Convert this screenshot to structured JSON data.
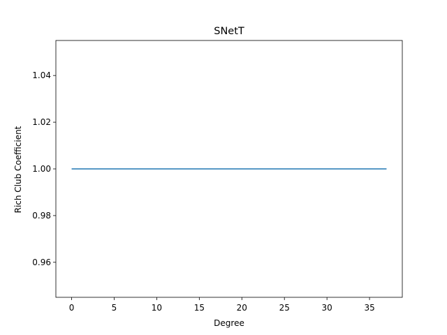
{
  "chart_data": {
    "type": "line",
    "title": "SNetT",
    "xlabel": "Degree",
    "ylabel": "Rich Club Coefficient",
    "xlim": [
      -1.85,
      38.85
    ],
    "ylim": [
      0.945,
      1.055
    ],
    "xticks": [
      0,
      5,
      10,
      15,
      20,
      25,
      30,
      35
    ],
    "xtick_labels": [
      "0",
      "5",
      "10",
      "15",
      "20",
      "25",
      "30",
      "35"
    ],
    "yticks": [
      0.96,
      0.98,
      1.0,
      1.02,
      1.04
    ],
    "ytick_labels": [
      "0.96",
      "0.98",
      "1.00",
      "1.02",
      "1.04"
    ],
    "grid": false,
    "series": [
      {
        "color": "#1f77b4",
        "x": [
          0,
          37
        ],
        "y": [
          1.0,
          1.0
        ]
      }
    ]
  }
}
